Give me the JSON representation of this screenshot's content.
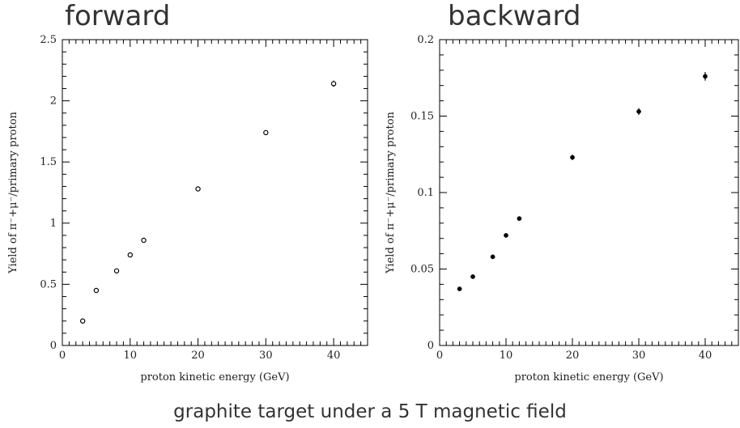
{
  "panel_titles": [
    "forward",
    "backward"
  ],
  "caption": "graphite target under a 5 T magnetic field",
  "chart_data": [
    {
      "type": "scatter",
      "title": "forward",
      "xlabel": "proton kinetic energy (GeV)",
      "ylabel": "Yield of π⁻+μ⁻/primary proton",
      "xlim": [
        0,
        45
      ],
      "ylim": [
        0,
        2.5
      ],
      "xticks": [
        0,
        10,
        20,
        30,
        40
      ],
      "yticks": [
        0,
        0.5,
        1,
        1.5,
        2,
        2.5
      ],
      "ytick_labels": [
        "0",
        "0.5",
        "1",
        "1.5",
        "2",
        "2.5"
      ],
      "marker": "open-circle",
      "x": [
        3,
        5,
        8,
        10,
        12,
        20,
        30,
        40
      ],
      "y": [
        0.2,
        0.45,
        0.61,
        0.74,
        0.86,
        1.28,
        1.74,
        2.14
      ],
      "yerr": [
        0.005,
        0.006,
        0.007,
        0.008,
        0.009,
        0.012,
        0.02,
        0.025
      ]
    },
    {
      "type": "scatter",
      "title": "backward",
      "xlabel": "proton kinetic energy (GeV)",
      "ylabel": "Yield of π⁻+μ⁻/primary proton",
      "xlim": [
        0,
        45
      ],
      "ylim": [
        0,
        0.2
      ],
      "xticks": [
        0,
        10,
        20,
        30,
        40
      ],
      "yticks": [
        0,
        0.05,
        0.1,
        0.15,
        0.2
      ],
      "ytick_labels": [
        "0",
        "0.05",
        "0.1",
        "0.15",
        "0.2"
      ],
      "marker": "filled-circle",
      "x": [
        3,
        5,
        8,
        10,
        12,
        20,
        30,
        40
      ],
      "y": [
        0.037,
        0.045,
        0.058,
        0.072,
        0.083,
        0.123,
        0.153,
        0.176
      ],
      "yerr": [
        0.0007,
        0.0008,
        0.001,
        0.0012,
        0.0013,
        0.0017,
        0.0022,
        0.0028
      ]
    }
  ]
}
